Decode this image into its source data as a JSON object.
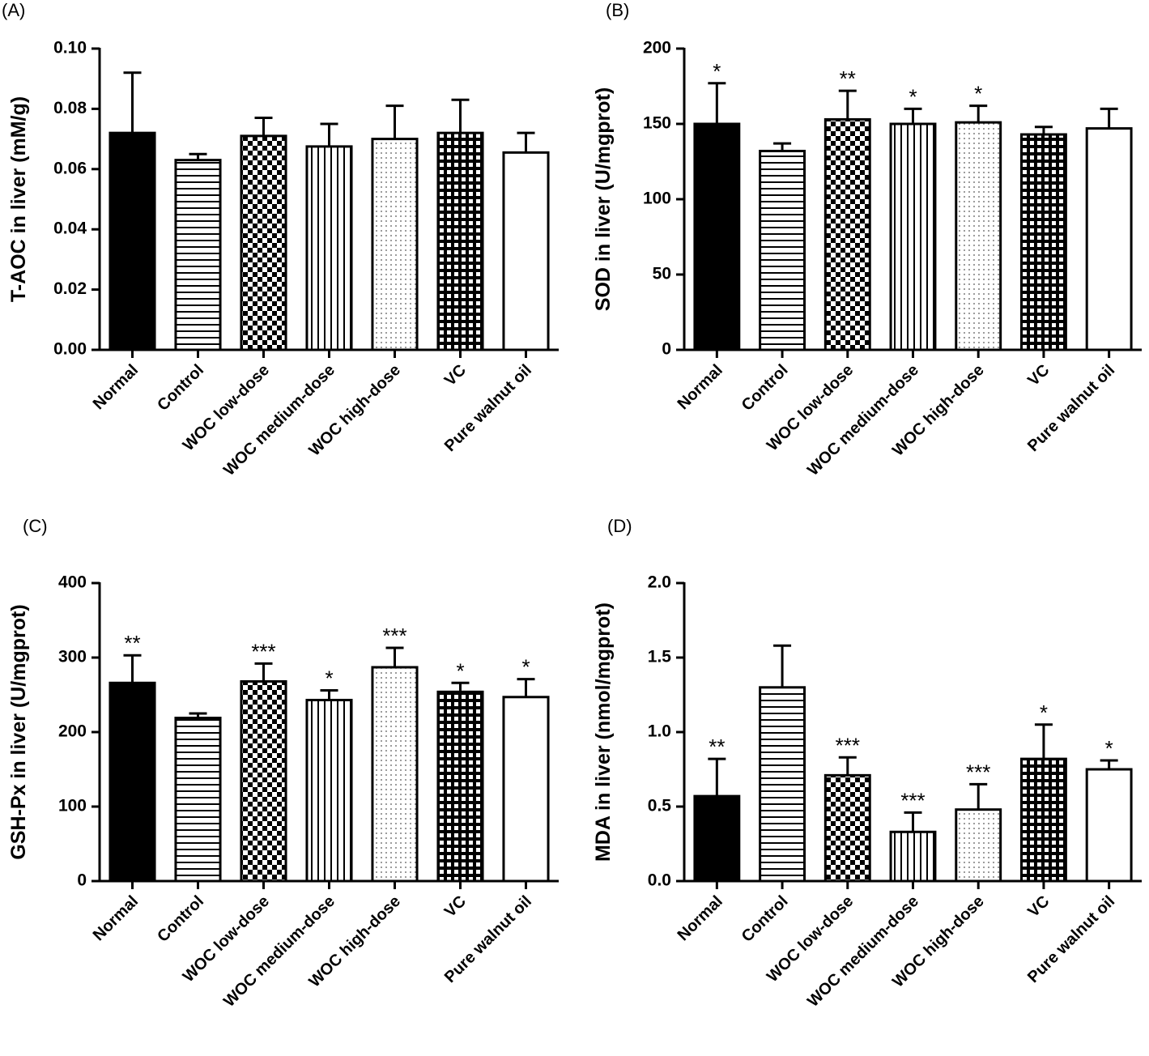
{
  "chart_data": [
    {
      "type": "bar",
      "panel": "(A)",
      "ylabel": "T-AOC in liver (mM/g)",
      "categories": [
        "Normal",
        "Control",
        "WOC low-dose",
        "WOC medium-dose",
        "WOC high-dose",
        "VC",
        "Pure walnut oil"
      ],
      "values": [
        0.072,
        0.063,
        0.071,
        0.0675,
        0.07,
        0.072,
        0.0655
      ],
      "errors": [
        0.02,
        0.002,
        0.006,
        0.0075,
        0.011,
        0.011,
        0.0065
      ],
      "significance": [
        null,
        null,
        null,
        null,
        null,
        null,
        null
      ],
      "ylim": [
        0,
        0.1
      ],
      "yticks": [
        {
          "value": 0,
          "label": "0.00"
        },
        {
          "value": 0.02,
          "label": "0.02"
        },
        {
          "value": 0.04,
          "label": "0.04"
        },
        {
          "value": 0.06,
          "label": "0.06"
        },
        {
          "value": 0.08,
          "label": "0.08"
        },
        {
          "value": 0.1,
          "label": "0.10"
        }
      ]
    },
    {
      "type": "bar",
      "panel": "(B)",
      "ylabel": "SOD in liver (U/mgprot)",
      "categories": [
        "Normal",
        "Control",
        "WOC low-dose",
        "WOC medium-dose",
        "WOC high-dose",
        "VC",
        "Pure walnut oil"
      ],
      "values": [
        150,
        132,
        153,
        150,
        151,
        143,
        147
      ],
      "errors": [
        27,
        5,
        19,
        10,
        11,
        5,
        13
      ],
      "significance": [
        "*",
        null,
        "**",
        "*",
        "*",
        null,
        null
      ],
      "ylim": [
        0,
        200
      ],
      "yticks": [
        0,
        50,
        100,
        150,
        200
      ]
    },
    {
      "type": "bar",
      "panel": "(C)",
      "ylabel": "GSH-Px in liver (U/mgprot)",
      "categories": [
        "Normal",
        "Control",
        "WOC low-dose",
        "WOC medium-dose",
        "WOC high-dose",
        "VC",
        "Pure walnut oil"
      ],
      "values": [
        266,
        219,
        268,
        243,
        287,
        254,
        247
      ],
      "errors": [
        37,
        6,
        24,
        13,
        26,
        12,
        24
      ],
      "significance": [
        "**",
        null,
        "***",
        "*",
        "***",
        "*",
        "*"
      ],
      "ylim": [
        0,
        400
      ],
      "yticks": [
        0,
        100,
        200,
        300,
        400
      ]
    },
    {
      "type": "bar",
      "panel": "(D)",
      "ylabel": "MDA in liver (nmol/mgprot)",
      "categories": [
        "Normal",
        "Control",
        "WOC low-dose",
        "WOC medium-dose",
        "WOC high-dose",
        "VC",
        "Pure walnut oil"
      ],
      "values": [
        0.57,
        1.3,
        0.71,
        0.33,
        0.48,
        0.82,
        0.75
      ],
      "errors": [
        0.25,
        0.28,
        0.12,
        0.13,
        0.17,
        0.23,
        0.06
      ],
      "significance": [
        "**",
        null,
        "***",
        "***",
        "***",
        "*",
        "*"
      ],
      "ylim": [
        0,
        2.0
      ],
      "yticks": [
        {
          "value": 0,
          "label": "0.0"
        },
        0.5,
        {
          "value": 1.0,
          "label": "1.0"
        },
        1.5,
        {
          "value": 2.0,
          "label": "2.0"
        }
      ]
    }
  ]
}
